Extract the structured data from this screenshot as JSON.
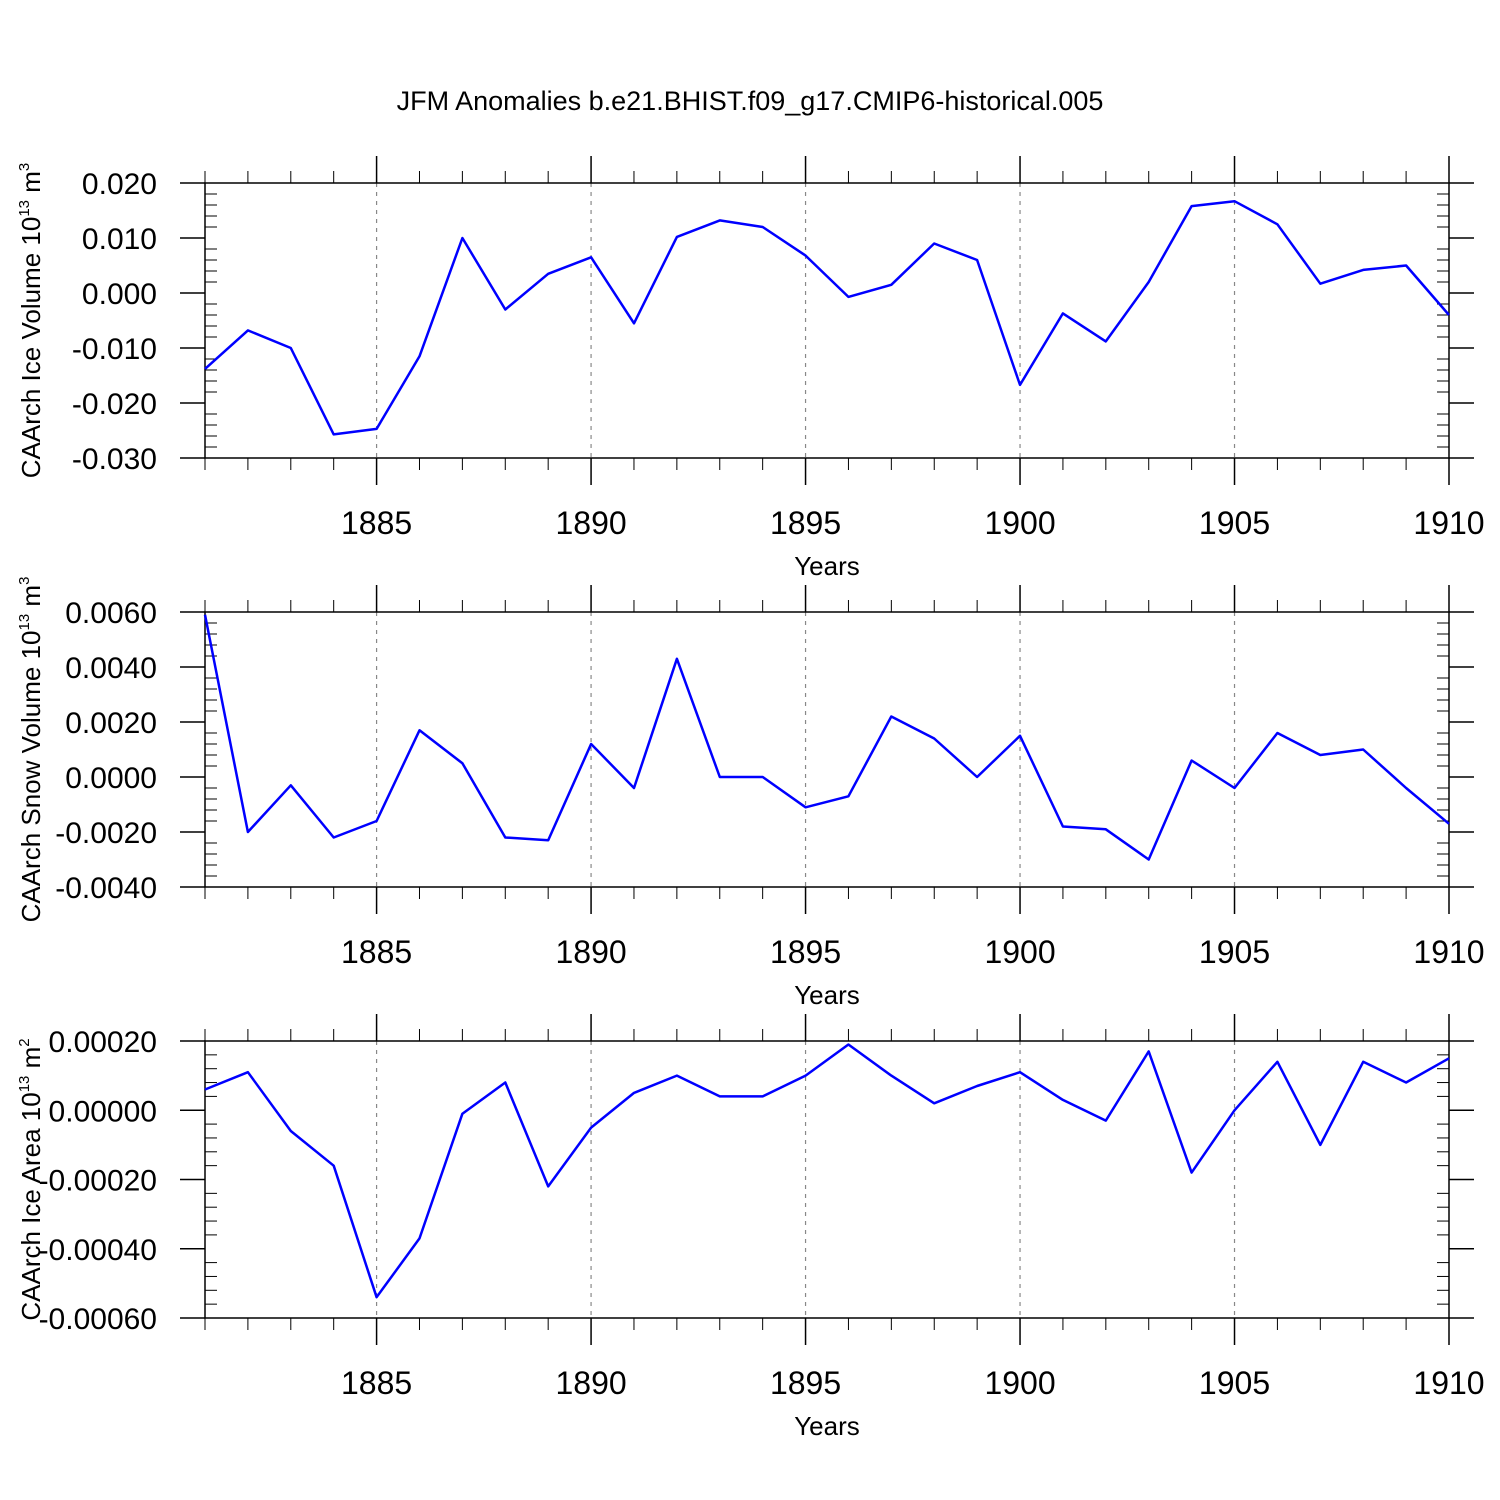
{
  "title": "JFM Anomalies b.e21.BHIST.f09_g17.CMIP6-historical.005",
  "line_color": "#0000ff",
  "chart_data": [
    {
      "type": "line",
      "ylabel": "CAArch Ice Volume 10",
      "ylabel_exp": "13",
      "ylabel_unit": " m",
      "ylabel_unit_exp": "3",
      "xlabel": "Years",
      "xlim": [
        1881,
        1910
      ],
      "ylim": [
        -0.03,
        0.02
      ],
      "yticks": [
        -0.03,
        -0.02,
        -0.01,
        0.0,
        0.01,
        0.02
      ],
      "ytick_labels": [
        "-0.030",
        "-0.020",
        "-0.010",
        "0.000",
        "0.010",
        "0.020"
      ],
      "xticks": [
        1885,
        1890,
        1895,
        1900,
        1905,
        1910
      ],
      "xtick_labels": [
        "1885",
        "1890",
        "1895",
        "1900",
        "1905",
        "1910"
      ],
      "x": [
        1881,
        1882,
        1883,
        1884,
        1885,
        1886,
        1887,
        1888,
        1889,
        1890,
        1891,
        1892,
        1893,
        1894,
        1895,
        1896,
        1897,
        1898,
        1899,
        1900,
        1901,
        1902,
        1903,
        1904,
        1905,
        1906,
        1907,
        1908,
        1909,
        1910
      ],
      "values": [
        -0.0138,
        -0.0068,
        -0.01,
        -0.0257,
        -0.0247,
        -0.0115,
        0.01,
        -0.003,
        0.0035,
        0.0065,
        -0.0055,
        0.0102,
        0.0132,
        0.012,
        0.0068,
        -0.0007,
        0.0015,
        0.009,
        0.006,
        -0.0167,
        -0.0037,
        -0.0088,
        0.002,
        0.0158,
        0.0167,
        0.0125,
        0.0017,
        0.0042,
        0.005,
        -0.004
      ]
    },
    {
      "type": "line",
      "ylabel": "CAArch Snow Volume 10",
      "ylabel_exp": "13",
      "ylabel_unit": " m",
      "ylabel_unit_exp": "3",
      "xlabel": "Years",
      "xlim": [
        1881,
        1910
      ],
      "ylim": [
        -0.004,
        0.006
      ],
      "yticks": [
        -0.004,
        -0.002,
        0.0,
        0.002,
        0.004,
        0.006
      ],
      "ytick_labels": [
        "-0.0040",
        "-0.0020",
        "0.0000",
        "0.0020",
        "0.0040",
        "0.0060"
      ],
      "xticks": [
        1885,
        1890,
        1895,
        1900,
        1905,
        1910
      ],
      "xtick_labels": [
        "1885",
        "1890",
        "1895",
        "1900",
        "1905",
        "1910"
      ],
      "x": [
        1881,
        1882,
        1883,
        1884,
        1885,
        1886,
        1887,
        1888,
        1889,
        1890,
        1891,
        1892,
        1893,
        1894,
        1895,
        1896,
        1897,
        1898,
        1899,
        1900,
        1901,
        1902,
        1903,
        1904,
        1905,
        1906,
        1907,
        1908,
        1909,
        1910
      ],
      "values": [
        0.0059,
        -0.002,
        -0.0003,
        -0.0022,
        -0.0016,
        0.0017,
        0.0005,
        -0.0022,
        -0.0023,
        0.0012,
        -0.0004,
        0.0043,
        0.0,
        0.0,
        -0.0011,
        -0.0007,
        0.0022,
        0.0014,
        0.0,
        0.0015,
        -0.0018,
        -0.0019,
        -0.003,
        0.0006,
        -0.0004,
        0.0016,
        0.0008,
        0.001,
        -0.0004,
        -0.0017
      ]
    },
    {
      "type": "line",
      "ylabel": "CAArch Ice Area 10",
      "ylabel_exp": "13",
      "ylabel_unit": " m",
      "ylabel_unit_exp": "2",
      "xlabel": "Years",
      "xlim": [
        1881,
        1910
      ],
      "ylim": [
        -0.0006,
        0.0002
      ],
      "yticks": [
        -0.0006,
        -0.0004,
        -0.0002,
        0.0,
        0.0002
      ],
      "ytick_labels": [
        "-0.00060",
        "-0.00040",
        "-0.00020",
        "0.00000",
        "0.00020"
      ],
      "xticks": [
        1885,
        1890,
        1895,
        1900,
        1905,
        1910
      ],
      "xtick_labels": [
        "1885",
        "1890",
        "1895",
        "1900",
        "1905",
        "1910"
      ],
      "x": [
        1881,
        1882,
        1883,
        1884,
        1885,
        1886,
        1887,
        1888,
        1889,
        1890,
        1891,
        1892,
        1893,
        1894,
        1895,
        1896,
        1897,
        1898,
        1899,
        1900,
        1901,
        1902,
        1903,
        1904,
        1905,
        1906,
        1907,
        1908,
        1909,
        1910
      ],
      "values": [
        6e-05,
        0.00011,
        -6e-05,
        -0.00016,
        -0.00054,
        -0.00037,
        -1e-05,
        8e-05,
        -0.00022,
        -5e-05,
        5e-05,
        0.0001,
        4e-05,
        4e-05,
        0.0001,
        0.00019,
        0.0001,
        2e-05,
        7e-05,
        0.00011,
        3e-05,
        -3e-05,
        0.00017,
        -0.00018,
        0.0,
        0.00014,
        -0.0001,
        0.00014,
        8e-05,
        0.00015
      ]
    }
  ]
}
